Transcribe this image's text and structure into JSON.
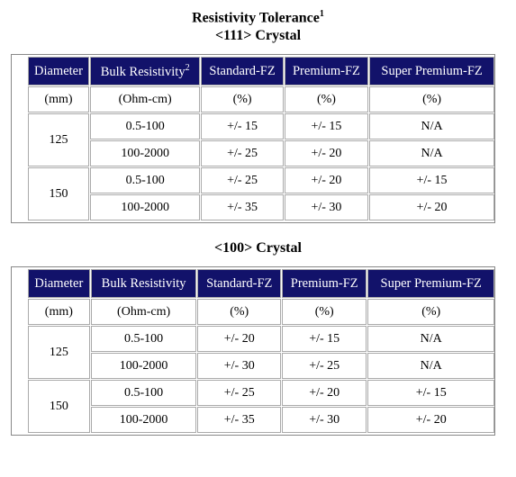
{
  "header": {
    "title": "Resistivity Tolerance",
    "title_note": "1"
  },
  "tables": [
    {
      "caption": "<111> Crystal",
      "columns": [
        "Diameter",
        "Bulk Resistivity",
        "Standard-FZ",
        "Premium-FZ",
        "Super Premium-FZ"
      ],
      "column_notes": {
        "1": "2"
      },
      "units": [
        "(mm)",
        "(Ohm-cm)",
        "(%)",
        "(%)",
        "(%)"
      ],
      "groups": [
        {
          "diameter": "125",
          "rows": [
            [
              "0.5-100",
              "+/- 15",
              "+/- 15",
              "N/A"
            ],
            [
              "100-2000",
              "+/- 25",
              "+/- 20",
              "N/A"
            ]
          ]
        },
        {
          "diameter": "150",
          "rows": [
            [
              "0.5-100",
              "+/- 25",
              "+/- 20",
              "+/- 15"
            ],
            [
              "100-2000",
              "+/- 35",
              "+/- 30",
              "+/- 20"
            ]
          ]
        }
      ]
    },
    {
      "caption": "<100> Crystal",
      "columns": [
        "Diameter",
        "Bulk Resistivity",
        "Standard-FZ",
        "Premium-FZ",
        "Super Premium-FZ"
      ],
      "column_notes": {},
      "units": [
        "(mm)",
        "(Ohm-cm)",
        "(%)",
        "(%)",
        "(%)"
      ],
      "groups": [
        {
          "diameter": "125",
          "rows": [
            [
              "0.5-100",
              "+/- 20",
              "+/- 15",
              "N/A"
            ],
            [
              "100-2000",
              "+/- 30",
              "+/- 25",
              "N/A"
            ]
          ]
        },
        {
          "diameter": "150",
          "rows": [
            [
              "0.5-100",
              "+/- 25",
              "+/- 20",
              "+/- 15"
            ],
            [
              "100-2000",
              "+/- 35",
              "+/- 30",
              "+/- 20"
            ]
          ]
        }
      ]
    }
  ]
}
